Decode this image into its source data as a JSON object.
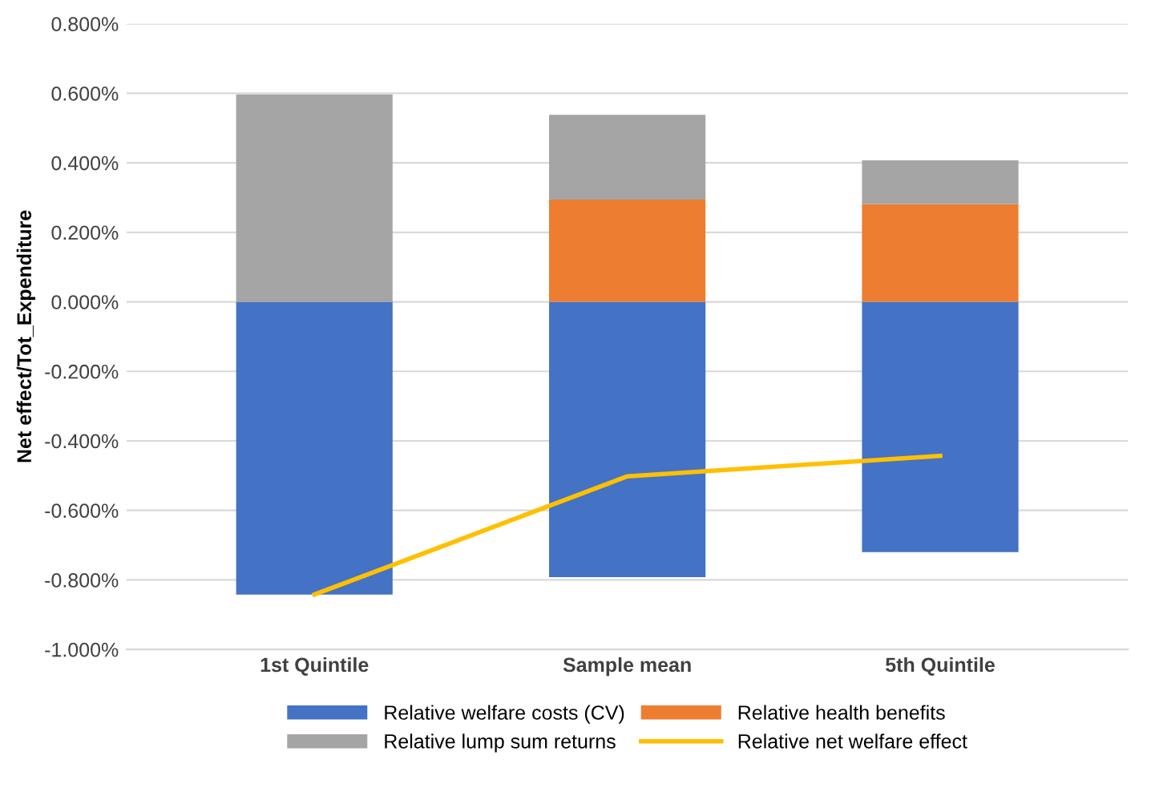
{
  "chart_data": {
    "type": "bar",
    "stacked": true,
    "ylabel": "Net effect/Tot_Expenditure",
    "categories": [
      "1st Quintile",
      "Sample mean",
      "5th Quintile"
    ],
    "series": [
      {
        "name": "Relative welfare costs (CV)",
        "color": "#4472c4",
        "values": [
          -0.842,
          -0.792,
          -0.72
        ]
      },
      {
        "name": "Relative health benefits",
        "color": "#ed7d31",
        "values": [
          0,
          0.294,
          0.281
        ]
      },
      {
        "name": "Relative lump sum returns",
        "color": "#a5a5a5",
        "values": [
          0.597,
          0.244,
          0.126
        ]
      },
      {
        "name": "Relative net welfare effect",
        "color": "#ffc000",
        "type": "line",
        "values": [
          -0.842,
          -0.502,
          -0.443
        ]
      }
    ],
    "ylim": [
      -1.0,
      0.8
    ],
    "yticks": [
      {
        "value": -1.0,
        "label": "-1.000%"
      },
      {
        "value": -0.8,
        "label": "-0.800%"
      },
      {
        "value": -0.6,
        "label": "-0.600%"
      },
      {
        "value": -0.4,
        "label": "-0.400%"
      },
      {
        "value": -0.2,
        "label": "-0.200%"
      },
      {
        "value": 0,
        "label": "0.000%"
      },
      {
        "value": 0.2,
        "label": "0.200%"
      },
      {
        "value": 0.4,
        "label": "0.400%"
      },
      {
        "value": 0.6,
        "label": "0.600%"
      },
      {
        "value": 0.8,
        "label": "0.800%"
      }
    ],
    "grid": "y",
    "legend": "bottom",
    "marker": "none",
    "line_style": "solid"
  }
}
